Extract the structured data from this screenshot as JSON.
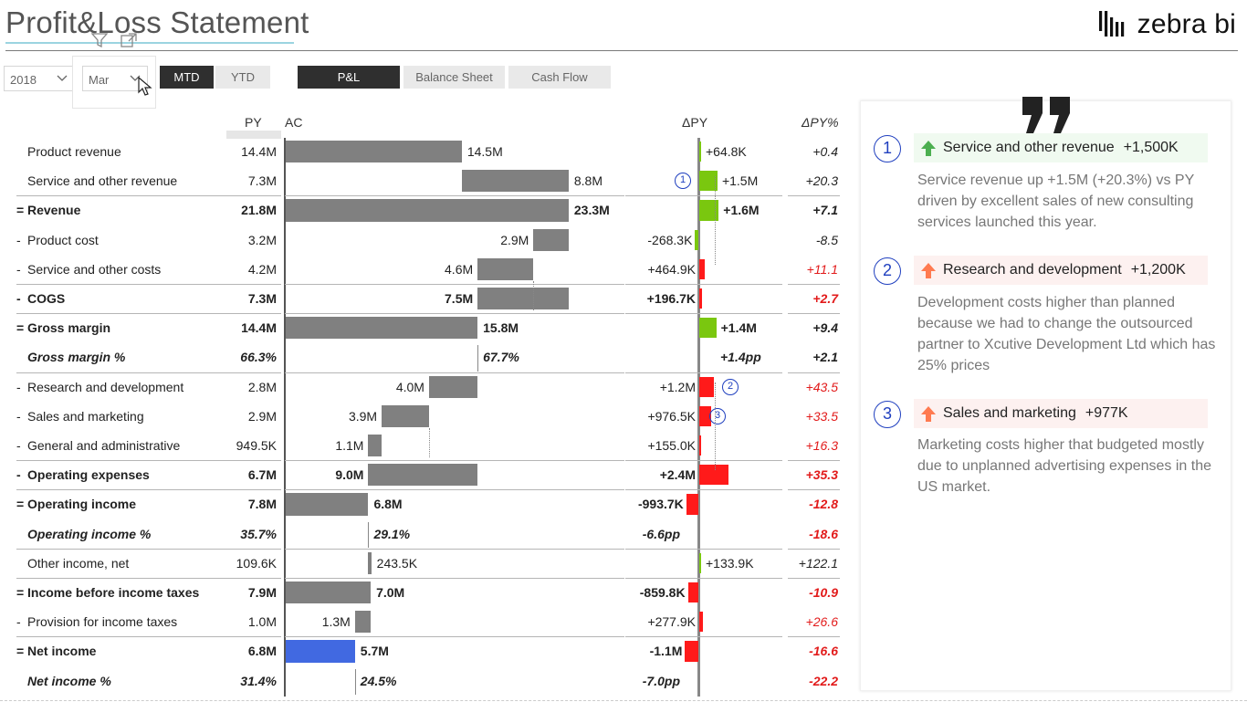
{
  "header": {
    "title": "Profit&Loss Statement",
    "logo_text": "zebra bi"
  },
  "filters": {
    "year": "2018",
    "month": "Mar",
    "period_buttons": [
      "MTD",
      "YTD"
    ],
    "active_period": "MTD",
    "view_buttons": [
      "P&L",
      "Balance Sheet",
      "Cash Flow"
    ],
    "active_view": "P&L"
  },
  "columns": {
    "py": "PY",
    "ac": "AC",
    "dpy": "ΔPY",
    "dpy_pct": "ΔPY%"
  },
  "rows": [
    {
      "op": "",
      "label": "Product revenue",
      "py": "14.4M",
      "ac": "14.5M",
      "dpy": "+64.8K",
      "pct": "+0.4",
      "style": "normal"
    },
    {
      "op": "",
      "label": "Service and other revenue",
      "py": "7.3M",
      "ac": "8.8M",
      "dpy": "+1.5M",
      "pct": "+20.3",
      "style": "normal",
      "note": "1"
    },
    {
      "op": "=",
      "label": "Revenue",
      "py": "21.8M",
      "ac": "23.3M",
      "dpy": "+1.6M",
      "pct": "+7.1",
      "style": "bold"
    },
    {
      "op": "-",
      "label": "Product cost",
      "py": "3.2M",
      "ac": "2.9M",
      "dpy": "-268.3K",
      "pct": "-8.5",
      "style": "normal"
    },
    {
      "op": "-",
      "label": "Service and other costs",
      "py": "4.2M",
      "ac": "4.6M",
      "dpy": "+464.9K",
      "pct": "+11.1",
      "style": "normal"
    },
    {
      "op": "-",
      "label": "COGS",
      "py": "7.3M",
      "ac": "7.5M",
      "dpy": "+196.7K",
      "pct": "+2.7",
      "style": "bold"
    },
    {
      "op": "=",
      "label": "Gross margin",
      "py": "14.4M",
      "ac": "15.8M",
      "dpy": "+1.4M",
      "pct": "+9.4",
      "style": "bold"
    },
    {
      "op": "",
      "label": "Gross margin %",
      "py": "66.3%",
      "ac": "67.7%",
      "dpy": "+1.4pp",
      "pct": "+2.1",
      "style": "bolditalic"
    },
    {
      "op": "-",
      "label": "Research and development",
      "py": "2.8M",
      "ac": "4.0M",
      "dpy": "+1.2M",
      "pct": "+43.5",
      "style": "normal",
      "note": "2"
    },
    {
      "op": "-",
      "label": "Sales and marketing",
      "py": "2.9M",
      "ac": "3.9M",
      "dpy": "+976.5K",
      "pct": "+33.5",
      "style": "normal",
      "note": "3"
    },
    {
      "op": "-",
      "label": "General and administrative",
      "py": "949.5K",
      "ac": "1.1M",
      "dpy": "+155.0K",
      "pct": "+16.3",
      "style": "normal"
    },
    {
      "op": "-",
      "label": "Operating expenses",
      "py": "6.7M",
      "ac": "9.0M",
      "dpy": "+2.4M",
      "pct": "+35.3",
      "style": "bold"
    },
    {
      "op": "=",
      "label": "Operating income",
      "py": "7.8M",
      "ac": "6.8M",
      "dpy": "-993.7K",
      "pct": "-12.8",
      "style": "bold"
    },
    {
      "op": "",
      "label": "Operating income %",
      "py": "35.7%",
      "ac": "29.1%",
      "dpy": "-6.6pp",
      "pct": "-18.6",
      "style": "bolditalic"
    },
    {
      "op": "",
      "label": "Other income, net",
      "py": "109.6K",
      "ac": "243.5K",
      "dpy": "+133.9K",
      "pct": "+122.1",
      "style": "normal"
    },
    {
      "op": "=",
      "label": "Income before income taxes",
      "py": "7.9M",
      "ac": "7.0M",
      "dpy": "-859.8K",
      "pct": "-10.9",
      "style": "bold"
    },
    {
      "op": "-",
      "label": "Provision for income taxes",
      "py": "1.0M",
      "ac": "1.3M",
      "dpy": "+277.9K",
      "pct": "+26.6",
      "style": "normal"
    },
    {
      "op": "=",
      "label": "Net income",
      "py": "6.8M",
      "ac": "5.7M",
      "dpy": "-1.1M",
      "pct": "-16.6",
      "style": "bold"
    },
    {
      "op": "",
      "label": "Net income %",
      "py": "31.4%",
      "ac": "24.5%",
      "dpy": "-7.0pp",
      "pct": "-22.2",
      "style": "bolditalic"
    }
  ],
  "comments": [
    {
      "num": "1",
      "direction": "up-good",
      "title": "Service and other revenue",
      "value": "+1,500K",
      "text": "Service revenue up +1.5M (+20.3%) vs PY driven by excellent sales of new consulting services launched this year."
    },
    {
      "num": "2",
      "direction": "up-bad",
      "title": "Research and development",
      "value": "+1,200K",
      "text": "Development costs higher than planned because we had to change the outsourced partner to Xcutive Development Ltd which has 25% prices"
    },
    {
      "num": "3",
      "direction": "up-bad",
      "title": "Sales and marketing",
      "value": "+977K",
      "text": "Marketing costs higher that budgeted mostly due to unplanned advertising expenses in the US market."
    }
  ],
  "colors": {
    "bar_gray": "#808080",
    "net_income_blue": "#4169e1",
    "positive_green": "#7ac70f",
    "negative_red": "#ff1a1a",
    "note_blue": "#1f3fbf"
  }
}
